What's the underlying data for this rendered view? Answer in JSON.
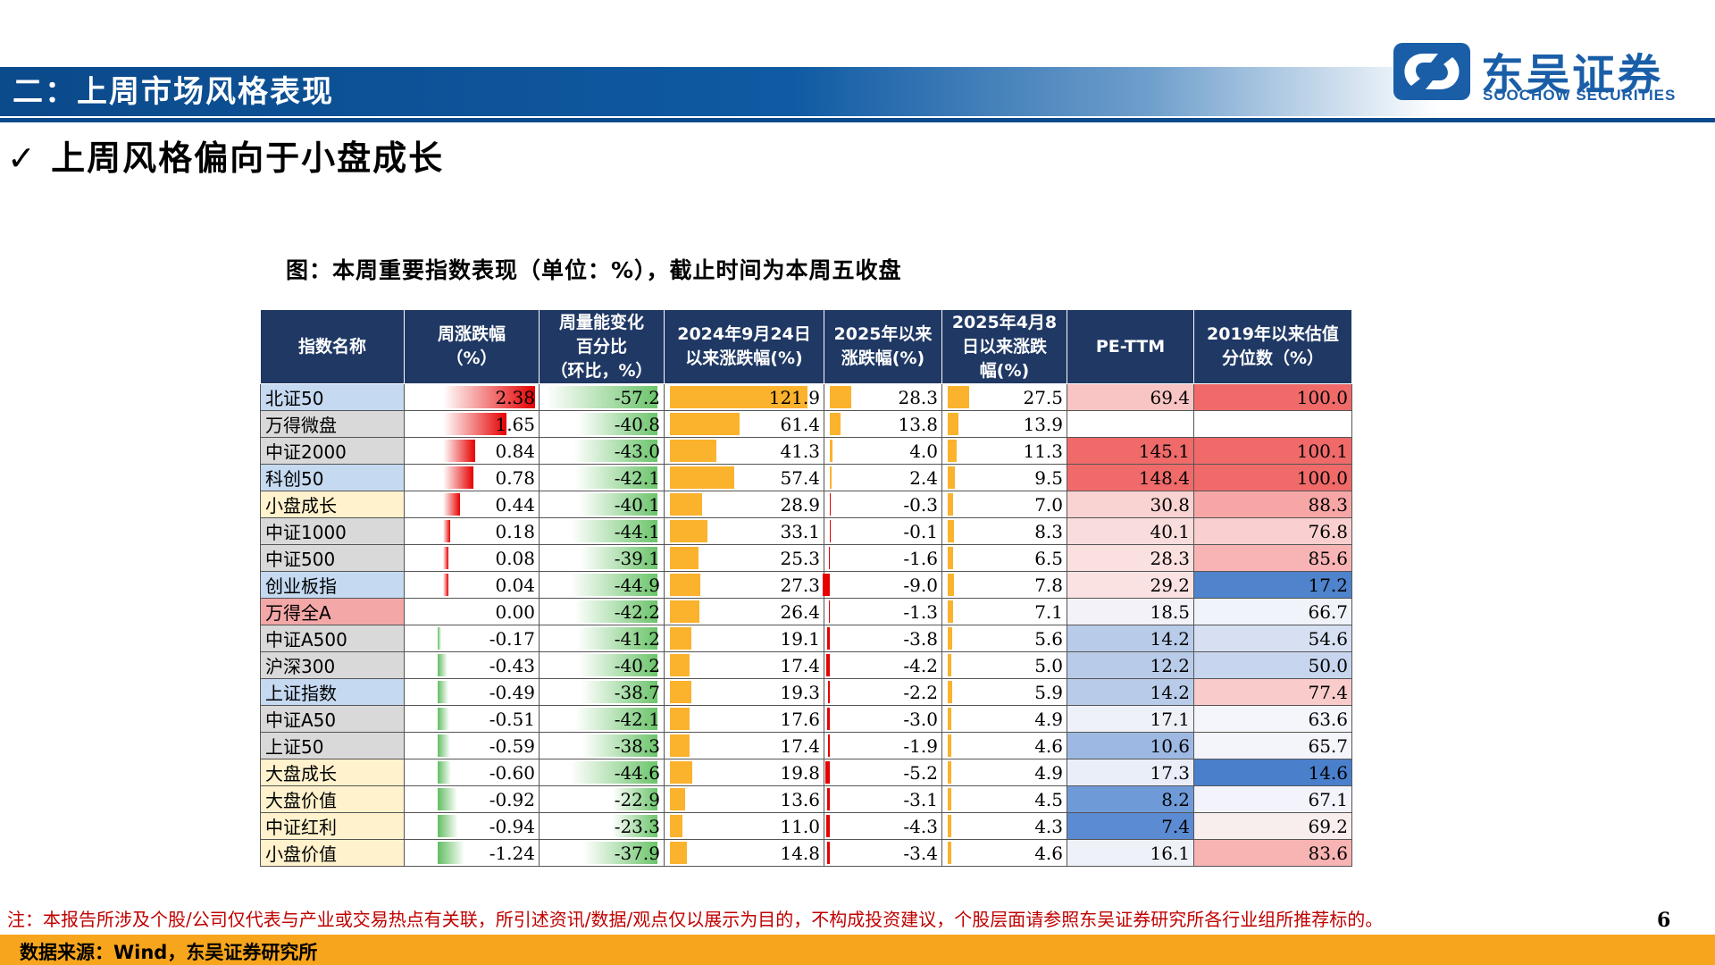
{
  "header": {
    "section_title": "二：上周市场风格表现"
  },
  "logo": {
    "cn": "东吴证券",
    "en": "SOOCHOW SECURITIES"
  },
  "subtitle": {
    "check": "✓",
    "text": "上周风格偏向于小盘成长"
  },
  "caption": "图：本周重要指数表现（单位：%），截止时间为本周五收盘",
  "table": {
    "columns": [
      "指数名称",
      "周涨跌幅\n（%）",
      "周量能变化\n百分比\n（环比，%）",
      "2024年9月24日\n以来涨跌幅(%)",
      "2025年以来\n涨跌幅(%)",
      "2025年4月8\n日以来涨跌\n幅(%)",
      "PE-TTM",
      "2019年以来估值\n分位数（%）"
    ],
    "rows": [
      {
        "name": "北证50",
        "w": "2.38",
        "vol": "-57.2",
        "s924": "121.9",
        "ytd": "28.3",
        "a48": "27.5",
        "pe": "69.4",
        "pct": "100.0"
      },
      {
        "name": "万得微盘",
        "w": "1.65",
        "vol": "-40.8",
        "s924": "61.4",
        "ytd": "13.8",
        "a48": "13.9",
        "pe": "",
        "pct": ""
      },
      {
        "name": "中证2000",
        "w": "0.84",
        "vol": "-43.0",
        "s924": "41.3",
        "ytd": "4.0",
        "a48": "11.3",
        "pe": "145.1",
        "pct": "100.1"
      },
      {
        "name": "科创50",
        "w": "0.78",
        "vol": "-42.1",
        "s924": "57.4",
        "ytd": "2.4",
        "a48": "9.5",
        "pe": "148.4",
        "pct": "100.0"
      },
      {
        "name": "小盘成长",
        "w": "0.44",
        "vol": "-40.1",
        "s924": "28.9",
        "ytd": "-0.3",
        "a48": "7.0",
        "pe": "30.8",
        "pct": "88.3"
      },
      {
        "name": "中证1000",
        "w": "0.18",
        "vol": "-44.1",
        "s924": "33.1",
        "ytd": "-0.1",
        "a48": "8.3",
        "pe": "40.1",
        "pct": "76.8"
      },
      {
        "name": "中证500",
        "w": "0.08",
        "vol": "-39.1",
        "s924": "25.3",
        "ytd": "-1.6",
        "a48": "6.5",
        "pe": "28.3",
        "pct": "85.6"
      },
      {
        "name": "创业板指",
        "w": "0.04",
        "vol": "-44.9",
        "s924": "27.3",
        "ytd": "-9.0",
        "a48": "7.8",
        "pe": "29.2",
        "pct": "17.2"
      },
      {
        "name": "万得全A",
        "w": "0.00",
        "vol": "-42.2",
        "s924": "26.4",
        "ytd": "-1.3",
        "a48": "7.1",
        "pe": "18.5",
        "pct": "66.7"
      },
      {
        "name": "中证A500",
        "w": "-0.17",
        "vol": "-41.2",
        "s924": "19.1",
        "ytd": "-3.8",
        "a48": "5.6",
        "pe": "14.2",
        "pct": "54.6"
      },
      {
        "name": "沪深300",
        "w": "-0.43",
        "vol": "-40.2",
        "s924": "17.4",
        "ytd": "-4.2",
        "a48": "5.0",
        "pe": "12.2",
        "pct": "50.0"
      },
      {
        "name": "上证指数",
        "w": "-0.49",
        "vol": "-38.7",
        "s924": "19.3",
        "ytd": "-2.2",
        "a48": "5.9",
        "pe": "14.2",
        "pct": "77.4"
      },
      {
        "name": "中证A50",
        "w": "-0.51",
        "vol": "-42.1",
        "s924": "17.6",
        "ytd": "-3.0",
        "a48": "4.9",
        "pe": "17.1",
        "pct": "63.6"
      },
      {
        "name": "上证50",
        "w": "-0.59",
        "vol": "-38.3",
        "s924": "17.4",
        "ytd": "-1.9",
        "a48": "4.6",
        "pe": "10.6",
        "pct": "65.7"
      },
      {
        "name": "大盘成长",
        "w": "-0.60",
        "vol": "-44.6",
        "s924": "19.8",
        "ytd": "-5.2",
        "a48": "4.9",
        "pe": "17.3",
        "pct": "14.6"
      },
      {
        "name": "大盘价值",
        "w": "-0.92",
        "vol": "-22.9",
        "s924": "13.6",
        "ytd": "-3.1",
        "a48": "4.5",
        "pe": "8.2",
        "pct": "67.1"
      },
      {
        "name": "中证红利",
        "w": "-0.94",
        "vol": "-23.3",
        "s924": "11.0",
        "ytd": "-4.3",
        "a48": "4.3",
        "pe": "7.4",
        "pct": "69.2"
      },
      {
        "name": "小盘价值",
        "w": "-1.24",
        "vol": "-37.9",
        "s924": "14.8",
        "ytd": "-3.4",
        "a48": "4.6",
        "pe": "16.1",
        "pct": "83.6"
      }
    ],
    "name_colors": [
      "#c5d9f1",
      "#d9d9d9",
      "#d9d9d9",
      "#c5d9f1",
      "#fff2cc",
      "#d9d9d9",
      "#d9d9d9",
      "#c5d9f1",
      "#f4a7a7",
      "#d9d9d9",
      "#d9d9d9",
      "#c5d9f1",
      "#d9d9d9",
      "#d9d9d9",
      "#fff2cc",
      "#fff2cc",
      "#fff2cc",
      "#fff2cc"
    ],
    "pe_colors": [
      "#f8c4c4",
      "#ffffff",
      "#f06a6a",
      "#f06a6a",
      "#f9d2d2",
      "#f9dcdc",
      "#fbe0e0",
      "#fbe2e2",
      "#f2f2f8",
      "#b8cbe8",
      "#b8cbe8",
      "#b8cbe8",
      "#eef1f8",
      "#9db9e3",
      "#eaeef8",
      "#6f9ad8",
      "#5b8bd3",
      "#eef1f8"
    ],
    "pct_colors": [
      "#f06a6a",
      "#ffffff",
      "#f06a6a",
      "#f06a6a",
      "#f7a6a6",
      "#f9cfcf",
      "#f8b4b4",
      "#4f83cc",
      "#f1f3fa",
      "#d6e0f2",
      "#c7d5ee",
      "#f9cbcb",
      "#f5f6fb",
      "#f4f4fb",
      "#4a7fcb",
      "#f2f3fb",
      "#f8eeee",
      "#f8b3b3"
    ]
  },
  "note": "注：本报告所涉及个股/公司仅代表与产业或交易热点有关联，所引述资讯/数据/观点仅以展示为目的，不构成投资建议，个股层面请参照东吴证券研究所各行业组所推荐标的。",
  "page_number": "6",
  "source": "数据来源：Wind，东吴证券研究所"
}
